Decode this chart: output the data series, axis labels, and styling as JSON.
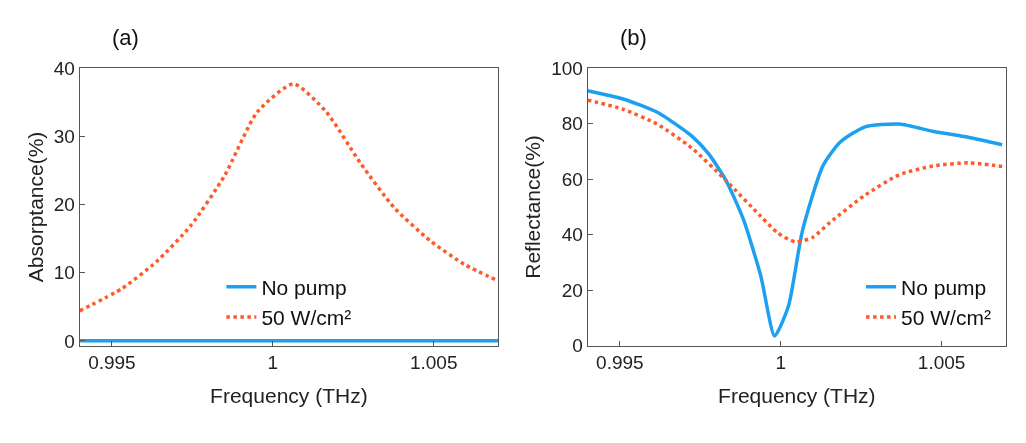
{
  "chart_data": [
    {
      "type": "line",
      "title": "(a)",
      "xlabel": "Frequency (THz)",
      "ylabel": "Absorptance(%)",
      "xlim": [
        0.994,
        1.007
      ],
      "ylim": [
        -0.7,
        40
      ],
      "xticks": [
        0.995,
        1,
        1.005
      ],
      "yticks": [
        0,
        10,
        20,
        30,
        40
      ],
      "legend": "bottom",
      "series": [
        {
          "name": "No pump",
          "color": "#1ea0f0",
          "line_style": "solid",
          "x": [
            0.994,
            1.007
          ],
          "values": [
            0,
            0
          ]
        },
        {
          "name": "50 W/cm²",
          "color": "#ff5a28",
          "line_style": "dotted",
          "x": [
            0.994,
            0.99532,
            0.99638,
            0.99745,
            0.99851,
            0.99952,
            1.00064,
            1.00166,
            1.00272,
            1.00378,
            1.00489,
            1.00596,
            1.007
          ],
          "values": [
            4.4,
            7.7,
            11.6,
            16.9,
            24.3,
            33.6,
            37.7,
            33.6,
            26.1,
            19.5,
            14.7,
            11.2,
            8.8
          ]
        }
      ]
    },
    {
      "type": "line",
      "title": "(b)",
      "xlabel": "Frequency (THz)",
      "ylabel": "Reflectance(%)",
      "xlim": [
        0.994,
        1.007
      ],
      "ylim": [
        0,
        100
      ],
      "xticks": [
        0.995,
        1,
        1.005
      ],
      "yticks": [
        0,
        20,
        40,
        60,
        80,
        100
      ],
      "legend": "bottom right",
      "series": [
        {
          "name": "No pump",
          "color": "#1ea0f0",
          "line_style": "solid",
          "x": [
            0.994,
            0.99508,
            0.99615,
            0.99723,
            0.99776,
            0.9983,
            0.99884,
            0.99938,
            0.99981,
            1.00024,
            1.00067,
            1.00131,
            1.00185,
            1.0026,
            1.00368,
            1.00475,
            1.00583,
            1.00688
          ],
          "values": [
            91.9,
            89.0,
            84.2,
            75.6,
            69.1,
            59.5,
            45.5,
            25.1,
            3.5,
            14.3,
            41.2,
            64.8,
            73.4,
            78.8,
            79.9,
            77.2,
            75.1,
            72.4
          ]
        },
        {
          "name": "50 W/cm²",
          "color": "#ff5a28",
          "line_style": "dotted",
          "x": [
            0.994,
            0.99508,
            0.99615,
            0.99723,
            0.9983,
            0.99938,
            0.99991,
            1.00045,
            1.00099,
            1.00153,
            1.0026,
            1.00368,
            1.00475,
            1.00583,
            1.00688
          ],
          "values": [
            88.5,
            85.3,
            79.9,
            71.3,
            59.5,
            46.6,
            40.6,
            37.4,
            39.0,
            44.4,
            54.1,
            61.6,
            64.8,
            65.9,
            64.6
          ]
        }
      ]
    }
  ]
}
